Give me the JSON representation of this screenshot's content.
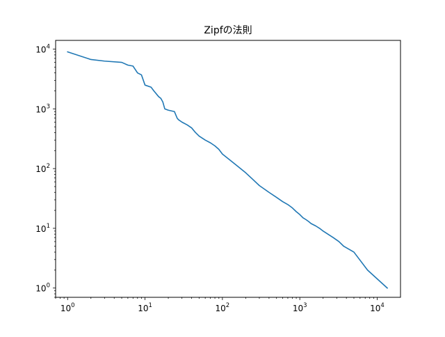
{
  "chart_data": {
    "type": "line",
    "title": "Zipfの法則",
    "xlabel": "",
    "ylabel": "",
    "xscale": "log",
    "yscale": "log",
    "xlim": [
      0.7,
      20000
    ],
    "ylim": [
      0.7,
      14000
    ],
    "xticks": [
      {
        "value": 1,
        "base": "10",
        "exp": "0"
      },
      {
        "value": 10,
        "base": "10",
        "exp": "1"
      },
      {
        "value": 100,
        "base": "10",
        "exp": "2"
      },
      {
        "value": 1000,
        "base": "10",
        "exp": "3"
      },
      {
        "value": 10000,
        "base": "10",
        "exp": "4"
      }
    ],
    "yticks": [
      {
        "value": 1,
        "base": "10",
        "exp": "0"
      },
      {
        "value": 10,
        "base": "10",
        "exp": "1"
      },
      {
        "value": 100,
        "base": "10",
        "exp": "2"
      },
      {
        "value": 1000,
        "base": "10",
        "exp": "3"
      },
      {
        "value": 10000,
        "base": "10",
        "exp": "4"
      }
    ],
    "grid": false,
    "legend": "none",
    "color": "#1f77b4",
    "series": [
      {
        "x": [
          1,
          2,
          3,
          5,
          6,
          7,
          8,
          9,
          10,
          12,
          13,
          15,
          16,
          17,
          18,
          20,
          24,
          26,
          27,
          30,
          35,
          40,
          45,
          50,
          60,
          70,
          80,
          90,
          100,
          120,
          150,
          200,
          250,
          300,
          400,
          500,
          600,
          700,
          800,
          900,
          1000,
          1100,
          1200,
          1300,
          1400,
          1600,
          1800,
          2000,
          2300,
          2700,
          3200,
          3700,
          5000,
          7500,
          13500
        ],
        "y": [
          9000,
          6700,
          6300,
          6000,
          5400,
          5200,
          4000,
          3700,
          2500,
          2300,
          2000,
          1600,
          1500,
          1300,
          1000,
          950,
          900,
          700,
          660,
          600,
          540,
          480,
          400,
          350,
          300,
          270,
          240,
          210,
          175,
          145,
          115,
          85,
          65,
          52,
          40,
          33,
          28,
          25,
          22,
          19,
          17,
          15,
          14,
          13,
          12,
          11,
          10,
          9,
          8,
          7,
          6,
          5,
          4,
          2,
          1
        ]
      }
    ]
  }
}
